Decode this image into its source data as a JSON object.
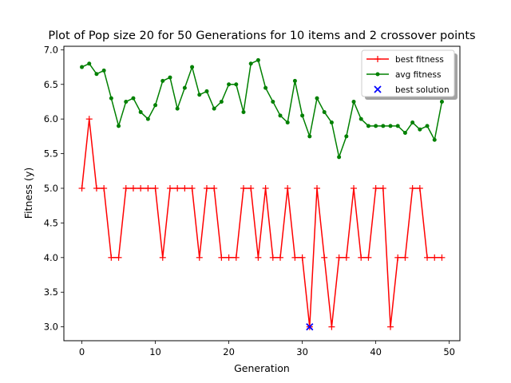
{
  "chart_data": {
    "type": "line",
    "title": "Plot of Pop size 20 for 50 Generations for 10 items and 2 crossover points",
    "xlabel": "Generation",
    "ylabel": "Fitness (y)",
    "xlim": [
      -2.45,
      51.45
    ],
    "ylim": [
      2.8,
      7.05
    ],
    "xticks": [
      0,
      10,
      20,
      30,
      40,
      50
    ],
    "yticks": [
      3.0,
      3.5,
      4.0,
      4.5,
      5.0,
      5.5,
      6.0,
      6.5,
      7.0
    ],
    "xtick_labels": [
      "0",
      "10",
      "20",
      "30",
      "40",
      "50"
    ],
    "ytick_labels": [
      "3.0",
      "3.5",
      "4.0",
      "4.5",
      "5.0",
      "5.5",
      "6.0",
      "6.5",
      "7.0"
    ],
    "grid": false,
    "legend_position": "top-right",
    "x": [
      0,
      1,
      2,
      3,
      4,
      5,
      6,
      7,
      8,
      9,
      10,
      11,
      12,
      13,
      14,
      15,
      16,
      17,
      18,
      19,
      20,
      21,
      22,
      23,
      24,
      25,
      26,
      27,
      28,
      29,
      30,
      31,
      32,
      33,
      34,
      35,
      36,
      37,
      38,
      39,
      40,
      41,
      42,
      43,
      44,
      45,
      46,
      47,
      48,
      49
    ],
    "series": [
      {
        "name": "best fitness",
        "color": "#ff0000",
        "marker": "plus",
        "values": [
          5,
          6,
          5,
          5,
          4,
          4,
          5,
          5,
          5,
          5,
          5,
          4,
          5,
          5,
          5,
          5,
          4,
          5,
          5,
          4,
          4,
          4,
          5,
          5,
          4,
          5,
          4,
          4,
          5,
          4,
          4,
          3,
          5,
          4,
          3,
          4,
          4,
          5,
          4,
          4,
          5,
          5,
          3,
          4,
          4,
          5,
          5,
          4,
          4,
          4
        ]
      },
      {
        "name": "avg fitness",
        "color": "#008000",
        "marker": "dot",
        "values": [
          6.75,
          6.8,
          6.65,
          6.7,
          6.3,
          5.9,
          6.25,
          6.3,
          6.1,
          6.0,
          6.2,
          6.55,
          6.6,
          6.15,
          6.45,
          6.75,
          6.35,
          6.4,
          6.15,
          6.25,
          6.5,
          6.5,
          6.1,
          6.8,
          6.85,
          6.45,
          6.25,
          6.05,
          5.95,
          6.55,
          6.05,
          5.75,
          6.3,
          6.1,
          5.95,
          5.45,
          5.75,
          6.25,
          6.0,
          5.9,
          5.9,
          5.9,
          5.9,
          5.9,
          5.8,
          5.95,
          5.85,
          5.9,
          5.7,
          6.25
        ]
      },
      {
        "name": "best solution",
        "color": "#0000ff",
        "marker": "x",
        "type": "scatter",
        "points": [
          [
            31,
            3.0
          ]
        ]
      }
    ]
  }
}
